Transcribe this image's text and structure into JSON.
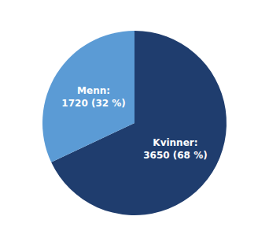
{
  "chart_data": {
    "type": "pie",
    "values": [
      68,
      32
    ],
    "value_labels": [
      "Kvinner:\n3650 (68 %)",
      "Menn:\n1720 (32 %)"
    ],
    "colors": [
      "#1F3D6E",
      "#5B9BD5"
    ],
    "data_labels": true
  }
}
